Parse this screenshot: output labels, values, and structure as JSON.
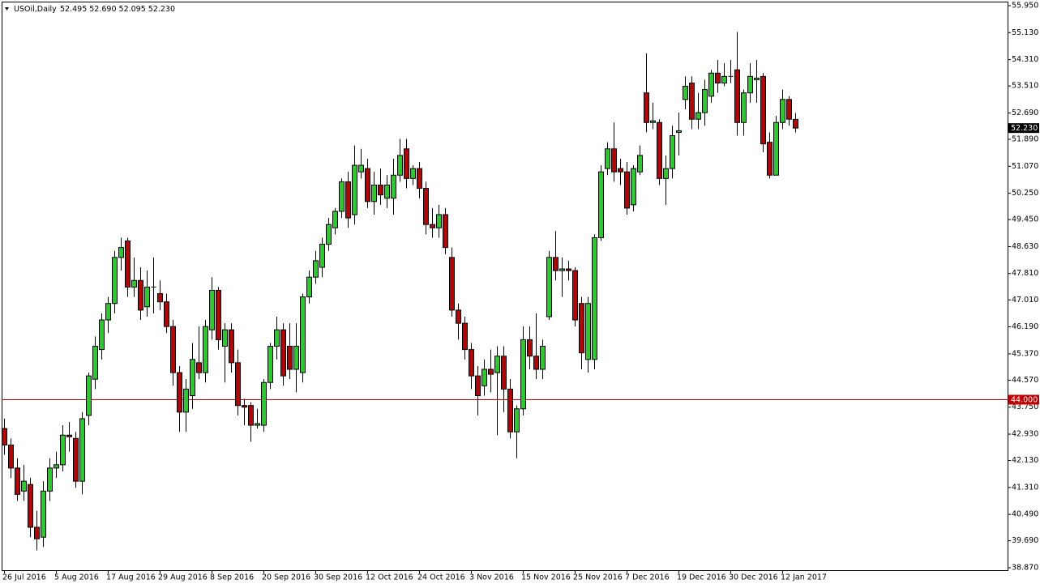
{
  "chart_data": {
    "type": "candlestick",
    "symbol": "USOil,Daily",
    "ohlc_text": "52.495 52.690 52.095 52.230",
    "up_color": "#22d022",
    "down_color": "#c00000",
    "categories": [
      "26 Jul 2016",
      null,
      null,
      null,
      null,
      null,
      null,
      null,
      "5 Aug 2016",
      null,
      null,
      null,
      null,
      null,
      null,
      null,
      "17 Aug 2016",
      null,
      null,
      null,
      null,
      null,
      null,
      null,
      "29 Aug 2016",
      null,
      null,
      null,
      null,
      null,
      null,
      null,
      "8 Sep 2016",
      null,
      null,
      null,
      null,
      null,
      null,
      null,
      "20 Sep 2016",
      null,
      null,
      null,
      null,
      null,
      null,
      null,
      "30 Sep 2016",
      null,
      null,
      null,
      null,
      null,
      null,
      null,
      "12 Oct 2016",
      null,
      null,
      null,
      null,
      null,
      null,
      null,
      "24 Oct 2016",
      null,
      null,
      null,
      null,
      null,
      null,
      null,
      "3 Nov 2016",
      null,
      null,
      null,
      null,
      null,
      null,
      null,
      "15 Nov 2016",
      null,
      null,
      null,
      null,
      null,
      null,
      null,
      "25 Nov 2016",
      null,
      null,
      null,
      null,
      null,
      null,
      null,
      "7 Dec 2016",
      null,
      null,
      null,
      null,
      null,
      null,
      null,
      "19 Dec 2016",
      null,
      null,
      null,
      null,
      null,
      null,
      null,
      "30 Dec 2016",
      null,
      null,
      null,
      null,
      null,
      null,
      null,
      "12 Jan 2017",
      null,
      null
    ],
    "open": [
      43.1,
      42.6,
      41.9,
      41.2,
      41.4,
      40.1,
      39.8,
      41.2,
      41.9,
      42.0,
      42.9,
      42.8,
      41.5,
      43.5,
      44.6,
      45.5,
      46.4,
      46.9,
      48.3,
      48.8,
      47.4,
      47.6,
      46.8,
      47.4,
      47.2,
      46.95,
      46.2,
      44.8,
      43.6,
      44.1,
      45.1,
      44.8,
      46.1,
      47.3,
      45.6,
      46.1,
      45.1,
      43.8,
      43.8,
      43.2,
      43.2,
      44.5,
      45.6,
      46.1,
      45.6,
      44.9,
      44.8,
      47.1,
      47.7,
      48.0,
      48.7,
      49.2,
      49.7,
      50.6,
      49.6,
      50.9,
      51.0,
      50.0,
      50.5,
      50.1,
      50.1,
      50.8,
      51.6,
      50.7,
      51.0,
      50.4,
      49.3,
      49.2,
      49.6,
      48.3,
      46.7,
      46.3,
      45.5,
      44.7,
      44.4,
      44.9,
      44.8,
      45.3,
      44.3,
      43.0,
      43.7,
      45.8,
      45.3,
      44.9,
      46.5,
      48.3,
      47.9,
      47.95,
      47.9,
      46.9,
      45.2,
      45.2,
      48.9,
      51.0,
      51.6,
      51.0,
      50.9,
      49.9,
      50.9,
      53.3,
      52.4,
      52.4,
      50.7,
      51.0,
      52.1,
      53.1,
      53.6,
      52.5,
      52.7,
      53.2,
      53.9,
      53.6,
      53.8,
      54.0,
      52.4,
      53.3,
      53.7,
      53.8,
      51.8,
      50.8,
      52.4,
      53.1,
      52.495
    ],
    "high": [
      43.4,
      42.8,
      42.2,
      42.0,
      41.6,
      40.6,
      41.5,
      42.2,
      42.4,
      43.2,
      43.3,
      43.0,
      43.6,
      44.8,
      45.9,
      46.6,
      47.1,
      48.5,
      48.9,
      48.9,
      48.3,
      48.0,
      47.9,
      48.3,
      47.6,
      47.2,
      46.4,
      45.0,
      44.6,
      45.7,
      46.2,
      46.4,
      47.7,
      47.4,
      46.3,
      46.3,
      45.5,
      44.0,
      43.9,
      43.7,
      44.6,
      45.7,
      46.5,
      46.3,
      46.3,
      46.3,
      47.2,
      47.9,
      48.5,
      48.9,
      49.5,
      49.8,
      50.7,
      50.9,
      51.7,
      51.6,
      51.3,
      50.9,
      51.0,
      50.8,
      51.3,
      51.9,
      51.9,
      51.1,
      51.2,
      50.6,
      49.8,
      49.9,
      49.8,
      48.6,
      46.9,
      46.5,
      45.7,
      45.0,
      45.2,
      45.5,
      45.6,
      45.6,
      44.6,
      43.8,
      46.2,
      46.2,
      46.6,
      45.8,
      48.5,
      49.1,
      48.3,
      48.2,
      48.0,
      47.1,
      47.1,
      49.0,
      51.1,
      51.8,
      52.4,
      51.3,
      51.2,
      51.1,
      51.7,
      54.5,
      53.0,
      52.5,
      51.4,
      52.3,
      52.7,
      53.8,
      53.8,
      53.3,
      53.7,
      54.0,
      54.3,
      54.2,
      54.3,
      55.15,
      53.4,
      54.2,
      54.3,
      53.9,
      52.1,
      52.6,
      53.4,
      53.2,
      52.69
    ],
    "low": [
      42.3,
      41.6,
      40.9,
      40.9,
      39.8,
      39.4,
      39.5,
      40.9,
      41.6,
      41.8,
      42.4,
      41.3,
      41.1,
      43.2,
      44.3,
      45.2,
      46.0,
      46.6,
      47.9,
      47.1,
      47.1,
      46.4,
      46.5,
      46.6,
      46.7,
      46.0,
      44.4,
      43.0,
      43.0,
      43.7,
      44.6,
      44.5,
      45.8,
      45.5,
      44.5,
      44.8,
      43.5,
      43.2,
      42.7,
      43.1,
      43.0,
      44.3,
      45.2,
      44.4,
      44.6,
      44.2,
      44.5,
      46.9,
      47.5,
      47.7,
      48.5,
      49.0,
      49.5,
      49.2,
      49.3,
      50.7,
      49.8,
      49.6,
      49.9,
      49.8,
      49.6,
      50.6,
      50.4,
      50.5,
      50.1,
      49.0,
      48.9,
      48.9,
      48.4,
      46.5,
      45.8,
      45.2,
      44.3,
      43.5,
      44.1,
      44.2,
      42.9,
      43.6,
      42.8,
      42.2,
      43.5,
      44.9,
      44.6,
      44.6,
      46.4,
      47.6,
      47.1,
      47.6,
      46.2,
      44.9,
      44.8,
      44.9,
      48.8,
      50.8,
      50.6,
      50.5,
      49.6,
      49.7,
      50.8,
      52.1,
      52.2,
      50.5,
      49.9,
      50.7,
      51.4,
      52.8,
      52.2,
      52.2,
      52.3,
      53.0,
      53.3,
      53.5,
      53.6,
      52.0,
      52.0,
      53.0,
      53.0,
      51.5,
      50.7,
      50.8,
      52.2,
      52.3,
      52.095
    ],
    "close": [
      42.6,
      41.9,
      41.1,
      41.5,
      40.1,
      39.75,
      41.2,
      41.9,
      42.0,
      42.9,
      42.85,
      41.5,
      43.4,
      44.7,
      45.6,
      46.4,
      46.9,
      48.3,
      48.6,
      47.4,
      47.6,
      46.7,
      47.4,
      47.4,
      46.95,
      46.2,
      44.8,
      43.6,
      44.3,
      45.2,
      44.8,
      46.2,
      47.3,
      45.8,
      46.1,
      45.1,
      43.8,
      43.75,
      43.2,
      43.25,
      44.5,
      45.6,
      46.1,
      44.7,
      44.9,
      45.6,
      47.1,
      47.7,
      48.2,
      48.7,
      49.3,
      49.7,
      50.6,
      49.5,
      51.1,
      51.1,
      50.0,
      50.5,
      50.2,
      50.5,
      50.8,
      51.4,
      50.7,
      51.0,
      50.4,
      49.3,
      49.2,
      49.6,
      48.6,
      46.7,
      46.3,
      45.5,
      44.7,
      44.1,
      44.9,
      44.75,
      45.3,
      44.3,
      43.0,
      43.7,
      45.8,
      45.3,
      44.9,
      45.6,
      48.3,
      47.9,
      47.95,
      47.9,
      46.4,
      45.4,
      46.9,
      48.9,
      50.9,
      51.6,
      50.9,
      50.9,
      49.8,
      51.0,
      51.4,
      52.4,
      52.45,
      50.7,
      51.0,
      52.0,
      52.15,
      53.5,
      52.5,
      52.7,
      53.4,
      53.9,
      53.6,
      53.8,
      53.8,
      52.4,
      53.3,
      53.8,
      53.75,
      51.75,
      50.8,
      52.4,
      53.1,
      52.5,
      52.23
    ],
    "ylim": [
      38.87,
      55.95
    ],
    "yticks": [
      {
        "value": 55.95,
        "label": "55.950"
      },
      {
        "value": 55.13,
        "label": "55.130"
      },
      {
        "value": 54.31,
        "label": "54.310"
      },
      {
        "value": 53.51,
        "label": "53.510"
      },
      {
        "value": 52.69,
        "label": "52.690"
      },
      {
        "value": 51.89,
        "label": "51.890"
      },
      {
        "value": 51.07,
        "label": "51.070"
      },
      {
        "value": 50.25,
        "label": "50.250"
      },
      {
        "value": 49.45,
        "label": "49.450"
      },
      {
        "value": 48.63,
        "label": "48.630"
      },
      {
        "value": 47.81,
        "label": "47.810"
      },
      {
        "value": 47.01,
        "label": "47.010"
      },
      {
        "value": 46.19,
        "label": "46.190"
      },
      {
        "value": 45.37,
        "label": "45.370"
      },
      {
        "value": 44.57,
        "label": "44.570"
      },
      {
        "value": 43.75,
        "label": "43.750"
      },
      {
        "value": 42.93,
        "label": "42.930"
      },
      {
        "value": 42.13,
        "label": "42.130"
      },
      {
        "value": 41.31,
        "label": "41.310"
      },
      {
        "value": 40.49,
        "label": "40.490"
      },
      {
        "value": 39.69,
        "label": "39.690"
      },
      {
        "value": 38.87,
        "label": "38.870"
      }
    ],
    "price_label": {
      "value": 52.23,
      "label": "52.230"
    },
    "hline": {
      "value": 44,
      "label": "44.000",
      "color": "#c00000"
    }
  }
}
